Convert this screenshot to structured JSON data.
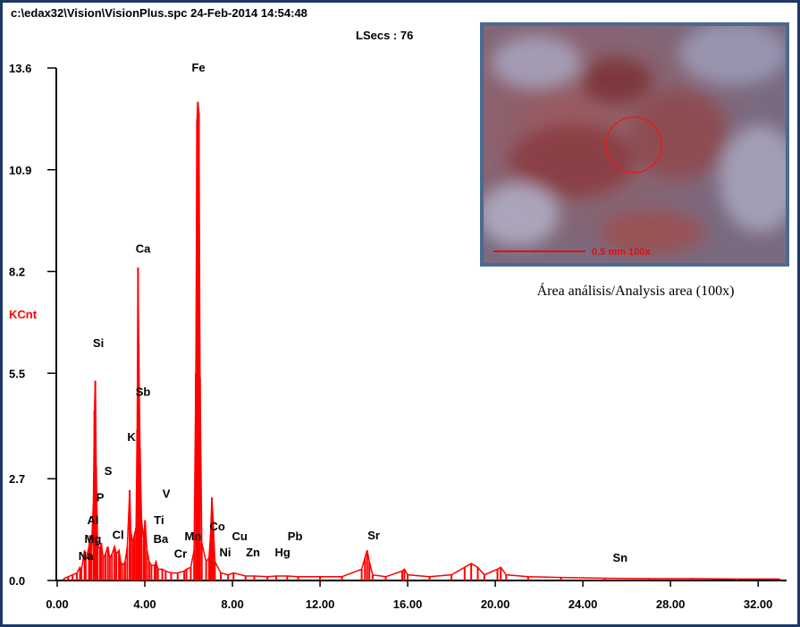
{
  "chart_data": {
    "type": "spectrum",
    "title": "c:\\edax32\\Vision\\VisionPlus.spc  24-Feb-2014 14:54:48",
    "subtitle": "LSecs : 76",
    "y_label": "KCnt",
    "color": "#ff0000",
    "xlim": [
      0,
      33.3
    ],
    "ylim": [
      0,
      13.6
    ],
    "xticks": [
      {
        "value": 0,
        "label": "0.00"
      },
      {
        "value": 4,
        "label": "4.00"
      },
      {
        "value": 8,
        "label": "8.00"
      },
      {
        "value": 12,
        "label": "12.00"
      },
      {
        "value": 16,
        "label": "16.00"
      },
      {
        "value": 20,
        "label": "20.00"
      },
      {
        "value": 24,
        "label": "24.00"
      },
      {
        "value": 28,
        "label": "28.00"
      },
      {
        "value": 32,
        "label": "32.00"
      }
    ],
    "yticks": [
      {
        "value": 0,
        "label": "0.0"
      },
      2.7,
      5.5,
      8.2,
      10.9,
      13.6
    ],
    "x": [
      0.3,
      0.5,
      0.7,
      0.9,
      1.04,
      1.1,
      1.25,
      1.3,
      1.45,
      1.49,
      1.55,
      1.65,
      1.7,
      1.74,
      1.78,
      1.84,
      1.95,
      2.01,
      2.1,
      2.2,
      2.31,
      2.4,
      2.5,
      2.62,
      2.7,
      2.82,
      2.9,
      3.0,
      3.1,
      3.2,
      3.31,
      3.36,
      3.45,
      3.52,
      3.6,
      3.65,
      3.69,
      3.72,
      3.78,
      3.85,
      3.95,
      4.01,
      4.1,
      4.2,
      4.3,
      4.45,
      4.51,
      4.6,
      4.8,
      4.95,
      5.2,
      5.5,
      5.8,
      5.9,
      6.1,
      6.25,
      6.33,
      6.38,
      6.42,
      6.47,
      6.52,
      6.6,
      6.8,
      6.93,
      7.0,
      7.06,
      7.12,
      7.2,
      7.47,
      7.8,
      8.05,
      8.6,
      9.0,
      9.6,
      10.0,
      10.5,
      11.0,
      12.0,
      13.0,
      13.9,
      14.05,
      14.15,
      14.25,
      14.4,
      15.0,
      15.75,
      15.85,
      16.0,
      17.0,
      18.0,
      18.6,
      18.9,
      19.2,
      19.5,
      20.1,
      20.25,
      20.5,
      21.5,
      23.0,
      25.0,
      27.0,
      29.0,
      31.0,
      33.0
    ],
    "values": [
      0.05,
      0.1,
      0.15,
      0.2,
      0.35,
      0.25,
      0.8,
      0.5,
      0.9,
      1.2,
      0.7,
      2.0,
      4.5,
      5.3,
      3.0,
      1.0,
      0.8,
      1.0,
      0.6,
      0.7,
      0.9,
      0.6,
      0.7,
      0.9,
      0.7,
      0.8,
      0.5,
      0.4,
      0.5,
      0.9,
      2.4,
      1.3,
      1.0,
      1.2,
      1.4,
      4.0,
      8.3,
      6.3,
      3.5,
      1.6,
      1.1,
      1.6,
      0.8,
      0.5,
      0.4,
      0.4,
      0.5,
      0.3,
      0.3,
      0.25,
      0.2,
      0.2,
      0.25,
      0.3,
      0.35,
      0.8,
      5.5,
      12.2,
      12.7,
      12.4,
      5.4,
      1.0,
      0.5,
      0.6,
      1.2,
      2.2,
      1.6,
      0.5,
      0.2,
      0.15,
      0.2,
      0.12,
      0.12,
      0.1,
      0.12,
      0.12,
      0.1,
      0.1,
      0.1,
      0.3,
      0.6,
      0.8,
      0.5,
      0.15,
      0.1,
      0.25,
      0.3,
      0.15,
      0.1,
      0.15,
      0.35,
      0.45,
      0.35,
      0.15,
      0.3,
      0.35,
      0.15,
      0.1,
      0.08,
      0.06,
      0.05,
      0.05,
      0.04,
      0.04
    ],
    "annotations": [
      {
        "text": "Fe",
        "x": 6.45,
        "y": 13.5
      },
      {
        "text": "Ca",
        "x": 3.92,
        "y": 8.7
      },
      {
        "text": "Si",
        "x": 1.88,
        "y": 6.2
      },
      {
        "text": "Sb",
        "x": 3.92,
        "y": 4.9
      },
      {
        "text": "K",
        "x": 3.39,
        "y": 3.7
      },
      {
        "text": "S",
        "x": 2.33,
        "y": 2.8
      },
      {
        "text": "V",
        "x": 4.98,
        "y": 2.2
      },
      {
        "text": "P",
        "x": 1.96,
        "y": 2.1
      },
      {
        "text": "Al",
        "x": 1.63,
        "y": 1.5
      },
      {
        "text": "Ti",
        "x": 4.65,
        "y": 1.5
      },
      {
        "text": "Mg",
        "x": 1.63,
        "y": 1.0
      },
      {
        "text": "Cl",
        "x": 2.78,
        "y": 1.1
      },
      {
        "text": "Ba",
        "x": 4.73,
        "y": 1.0
      },
      {
        "text": "Mn",
        "x": 6.2,
        "y": 1.07
      },
      {
        "text": "Co",
        "x": 7.31,
        "y": 1.33
      },
      {
        "text": "Cu",
        "x": 8.33,
        "y": 1.07
      },
      {
        "text": "Pb",
        "x": 10.86,
        "y": 1.07
      },
      {
        "text": "Na",
        "x": 1.31,
        "y": 0.55
      },
      {
        "text": "Cr",
        "x": 5.63,
        "y": 0.6
      },
      {
        "text": "Ni",
        "x": 7.67,
        "y": 0.64
      },
      {
        "text": "Zn",
        "x": 8.94,
        "y": 0.64
      },
      {
        "text": "Hg",
        "x": 10.29,
        "y": 0.64
      },
      {
        "text": "Sr",
        "x": 14.45,
        "y": 1.09
      },
      {
        "text": "Sn",
        "x": 25.7,
        "y": 0.5
      }
    ]
  },
  "inset": {
    "scale_label": "0.5 mm  100x",
    "caption": "Área análisis/Analysis area (100x)"
  }
}
